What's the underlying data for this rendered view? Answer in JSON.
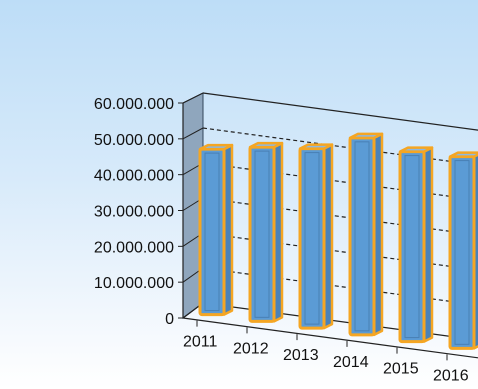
{
  "chart_data": {
    "type": "bar",
    "title": "",
    "xlabel": "",
    "ylabel": "",
    "categories": [
      "2011",
      "2012",
      "2013",
      "2014",
      "2015",
      "2016"
    ],
    "values": [
      47000000,
      49500000,
      51000000,
      56000000,
      54000000,
      54500000
    ],
    "ylim": [
      0,
      60000000
    ],
    "yticks": [
      0,
      10000000,
      20000000,
      30000000,
      40000000,
      50000000,
      60000000
    ],
    "ytick_labels": [
      "0",
      "10.000.000",
      "20.000.000",
      "30.000.000",
      "40.000.000",
      "50.000.000",
      "60.000.000"
    ],
    "grid": true,
    "grid_style": "dashed",
    "legend": "none",
    "projection": "3d",
    "colors": {
      "bar_front": "#5b9bd5",
      "bar_side": "#4a82b8",
      "bar_top": "#8cb9e3",
      "bar_outline": "#f5a623",
      "wall": "#8fa6bd",
      "grid": "#222222"
    }
  }
}
